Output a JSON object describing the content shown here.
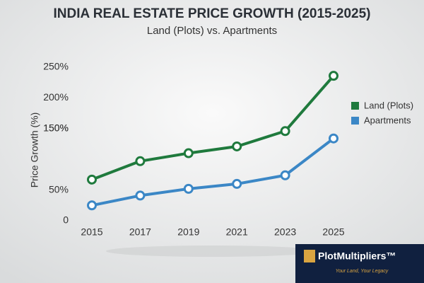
{
  "chart_data": {
    "type": "line",
    "title": "INDIA REAL ESTATE PRICE GROWTH (2015-2025)",
    "subtitle": "Land (Plots) vs. Apartments",
    "y_label": "Price Growth (%)",
    "x": [
      2015,
      2017,
      2019,
      2021,
      2023,
      2025
    ],
    "xlim": [
      2015,
      2025
    ],
    "xticks": [
      2015,
      2017,
      2019,
      2021,
      2023,
      2025
    ],
    "ylim": [
      0,
      250
    ],
    "yticks": [
      {
        "value": 250,
        "label": "250%"
      },
      {
        "value": 150,
        "label": "150%"
      },
      {
        "value": 200,
        "label": "200%"
      },
      {
        "value": 150,
        "label": "150%"
      },
      {
        "value": 50,
        "label": "50%"
      },
      0
    ],
    "grid": false,
    "legend": "right",
    "series": [
      {
        "name": "Land (Plots)",
        "color": "#1f7a3d",
        "values": [
          67,
          97,
          110,
          121,
          146,
          236
        ]
      },
      {
        "name": "Apartments",
        "color": "#3b87c6",
        "values": [
          25,
          41,
          52,
          60,
          74,
          134
        ]
      }
    ]
  },
  "brand": {
    "name": "PlotMultipliers™",
    "tagline": "Your Land, Your Legacy"
  }
}
